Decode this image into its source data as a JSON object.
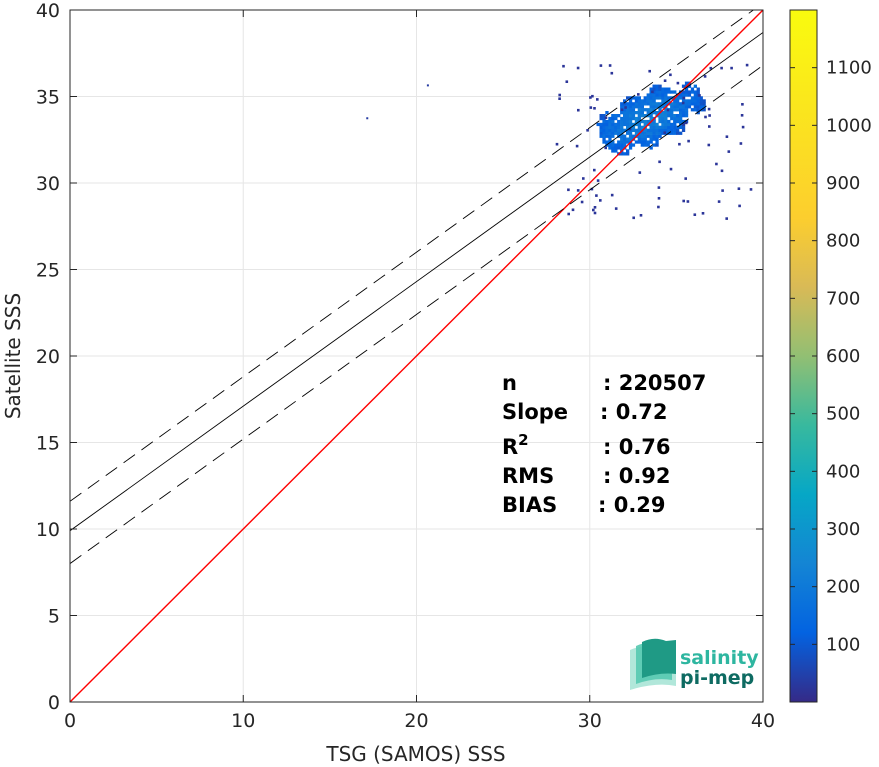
{
  "chart_data": {
    "type": "heatmap",
    "xlabel": "TSG (SAMOS) SSS",
    "ylabel": "Satellite SSS",
    "xlim": [
      0,
      40
    ],
    "ylim": [
      0,
      40
    ],
    "xticks": [
      0,
      10,
      20,
      30,
      40
    ],
    "yticks": [
      0,
      5,
      10,
      15,
      20,
      25,
      30,
      35,
      40
    ],
    "grid": true,
    "colormap": "parula",
    "colorbar": {
      "range": [
        0,
        1200
      ],
      "ticks": [
        100,
        200,
        300,
        400,
        500,
        600,
        700,
        800,
        900,
        1000,
        1100
      ]
    },
    "density_cloud": {
      "center": [
        33,
        33
      ],
      "x_range": [
        27.5,
        39.5
      ],
      "y_range": [
        27.7,
        37.2
      ],
      "peak": [
        36.2,
        36.2
      ],
      "outliers": [
        [
          20.6,
          35.7
        ],
        [
          17.1,
          33.8
        ]
      ]
    },
    "lines": [
      {
        "kind": "identity",
        "slope": 1,
        "intercept": 0,
        "color": "#ff0000"
      },
      {
        "kind": "regression",
        "slope": 0.72,
        "intercept": 9.9,
        "color": "#000000"
      },
      {
        "kind": "regression-upper",
        "slope": 0.72,
        "intercept": 11.6,
        "color": "#000000",
        "dash": true
      },
      {
        "kind": "regression-lower",
        "slope": 0.72,
        "intercept": 8.0,
        "color": "#000000",
        "dash": true
      }
    ],
    "stats": [
      {
        "label": "n",
        "value": ": 220507"
      },
      {
        "label": "Slope",
        "value": ": 0.72"
      },
      {
        "label": "R",
        "sup": "2",
        "value": ": 0.76"
      },
      {
        "label": "RMS",
        "value": ": 0.92"
      },
      {
        "label": "BIAS",
        "value": ": 0.29"
      }
    ]
  },
  "logo": {
    "line1": "salinity",
    "line2": "pi-mep",
    "color1": "#2eb6a0",
    "color2": "#0e6b62"
  }
}
